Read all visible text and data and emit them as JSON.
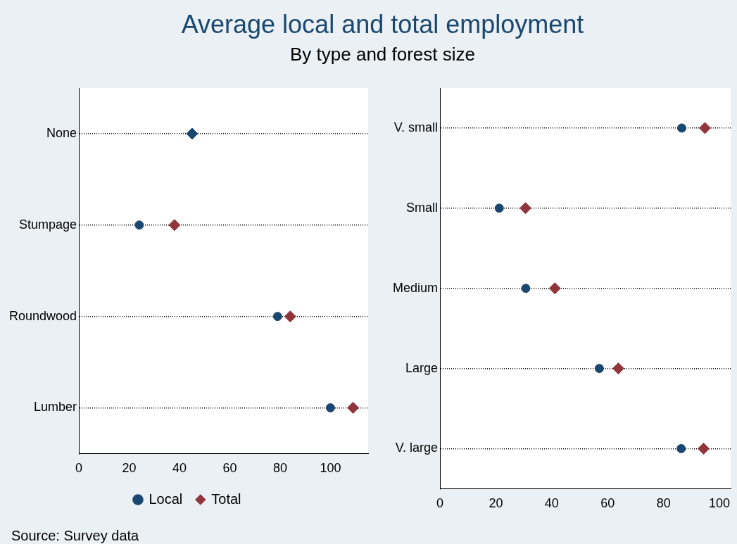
{
  "chart_data": [
    {
      "type": "scatter",
      "orientation": "horizontal",
      "title": "Average local and total employment",
      "subtitle": "By type and forest size",
      "categories": [
        "None",
        "Stumpage",
        "Roundwood",
        "Lumber"
      ],
      "series": [
        {
          "name": "Local",
          "color": "#1a476f",
          "marker": "circle",
          "values": [
            null,
            24,
            79,
            100
          ]
        },
        {
          "name": "Total",
          "color": "#90353b",
          "colors": [
            "#1a476f",
            "#90353b",
            "#90353b",
            "#90353b"
          ],
          "marker": "diamond",
          "values": [
            45,
            38,
            84,
            109
          ]
        }
      ],
      "xlim": [
        0,
        115
      ],
      "xticks": [
        0,
        20,
        40,
        60,
        80,
        100
      ],
      "grid": "y",
      "line_style": "dotted",
      "legend": "bottom",
      "annotations": [
        "Source:  Survey data"
      ]
    },
    {
      "type": "scatter",
      "orientation": "horizontal",
      "categories": [
        "V. small",
        "Small",
        "Medium",
        "Large",
        "V. large"
      ],
      "series": [
        {
          "color": "#1a476f",
          "marker": "circle",
          "values": [
            86.5,
            21.2,
            30.7,
            57,
            86.3
          ]
        },
        {
          "color": "#90353b",
          "marker": "diamond",
          "values": [
            94.8,
            30.6,
            41.1,
            63.8,
            94.3
          ]
        }
      ],
      "xlim": [
        0,
        104
      ],
      "xticks": [
        0,
        20,
        40,
        60,
        80,
        100
      ],
      "grid": "y",
      "line_style": "dotted",
      "legend": false
    }
  ]
}
